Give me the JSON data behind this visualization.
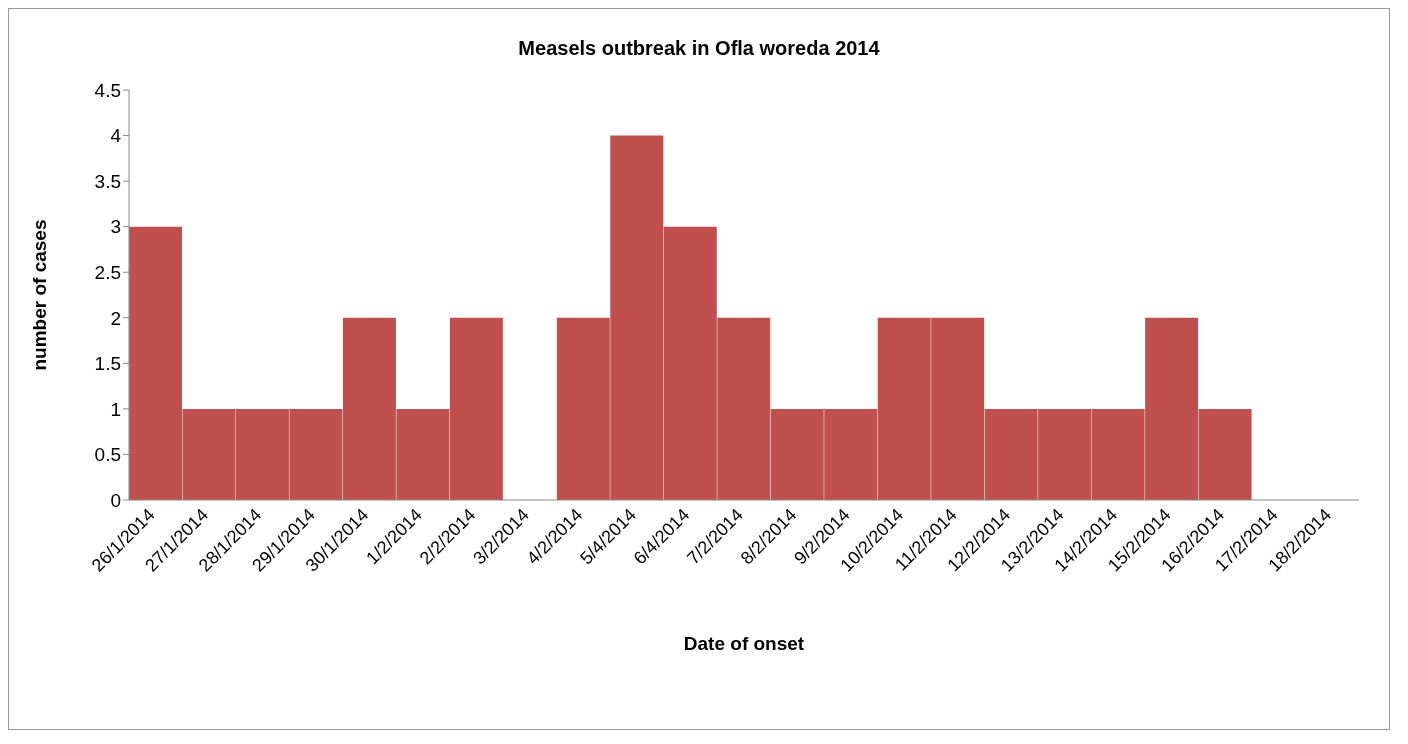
{
  "chart_data": {
    "type": "bar",
    "title": "Measels outbreak in Ofla woreda 2014",
    "xlabel": "Date of onset",
    "ylabel": "number of cases",
    "categories": [
      "26/1/2014",
      "27/1/2014",
      "28/1/2014",
      "29/1/2014",
      "30/1/2014",
      "1/2/2014",
      "2/2/2014",
      "3/2/2014",
      "4/2/2014",
      "5/4/2014",
      "6/4/2014",
      "7/2/2014",
      "8/2/2014",
      "9/2/2014",
      "10/2/2014",
      "11/2/2014",
      "12/2/2014",
      "13/2/2014",
      "14/2/2014",
      "15/2/2014",
      "16/2/2014",
      "17/2/2014",
      "18/2/2014"
    ],
    "values": [
      3,
      1,
      1,
      1,
      2,
      1,
      2,
      0,
      2,
      4,
      3,
      2,
      1,
      1,
      2,
      2,
      1,
      1,
      1,
      2,
      1,
      0,
      0
    ],
    "color": "#c0504d",
    "ylim": [
      0,
      4.5
    ],
    "yticks": [
      0,
      0.5,
      1,
      1.5,
      2,
      2.5,
      3,
      3.5,
      4,
      4.5
    ],
    "grid": false,
    "legend": false
  }
}
